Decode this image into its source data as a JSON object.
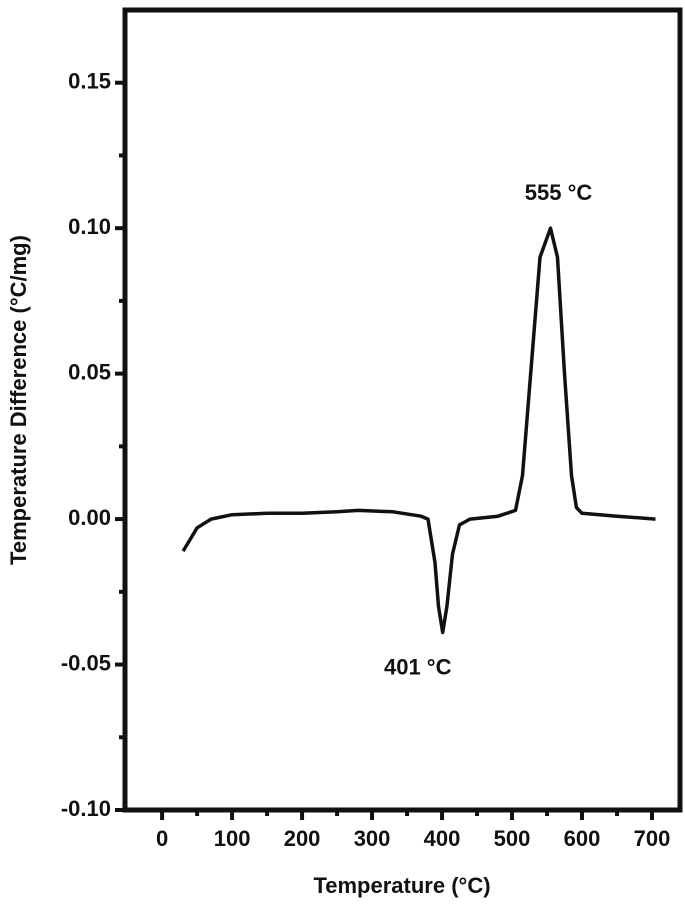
{
  "chart_data": {
    "type": "line",
    "xlabel": "Temperature (°C)",
    "ylabel": "Temperature Difference (°C/mg)",
    "x": [
      30,
      40,
      50,
      70,
      100,
      150,
      200,
      250,
      280,
      330,
      370,
      380,
      390,
      395,
      401,
      407,
      415,
      425,
      440,
      480,
      505,
      515,
      525,
      540,
      555,
      565,
      575,
      585,
      592,
      600,
      650,
      705
    ],
    "series": [
      {
        "color": "#111111",
        "values": [
          -0.011,
          -0.007,
          -0.003,
          0.0,
          0.0015,
          0.002,
          0.002,
          0.0025,
          0.003,
          0.0025,
          0.001,
          0.0,
          -0.015,
          -0.03,
          -0.039,
          -0.03,
          -0.012,
          -0.002,
          0.0,
          0.001,
          0.003,
          0.015,
          0.045,
          0.09,
          0.1,
          0.09,
          0.05,
          0.015,
          0.004,
          0.002,
          0.001,
          0.0
        ]
      }
    ],
    "annotations": [
      {
        "text": "401 °C",
        "x": 401,
        "y": -0.039
      },
      {
        "text": "555 °C",
        "x": 555,
        "y": 0.1
      }
    ],
    "xlim": [
      -53,
      740
    ],
    "ylim": [
      -0.1,
      0.175
    ],
    "xticks": [
      0,
      100,
      200,
      300,
      400,
      500,
      600,
      700
    ],
    "yticks": [
      {
        "value": -0.1,
        "label": "-0.10"
      },
      -0.05,
      {
        "value": 0,
        "label": "0.00"
      },
      0.05,
      {
        "value": 0.1,
        "label": "0.10"
      },
      0.15
    ]
  }
}
